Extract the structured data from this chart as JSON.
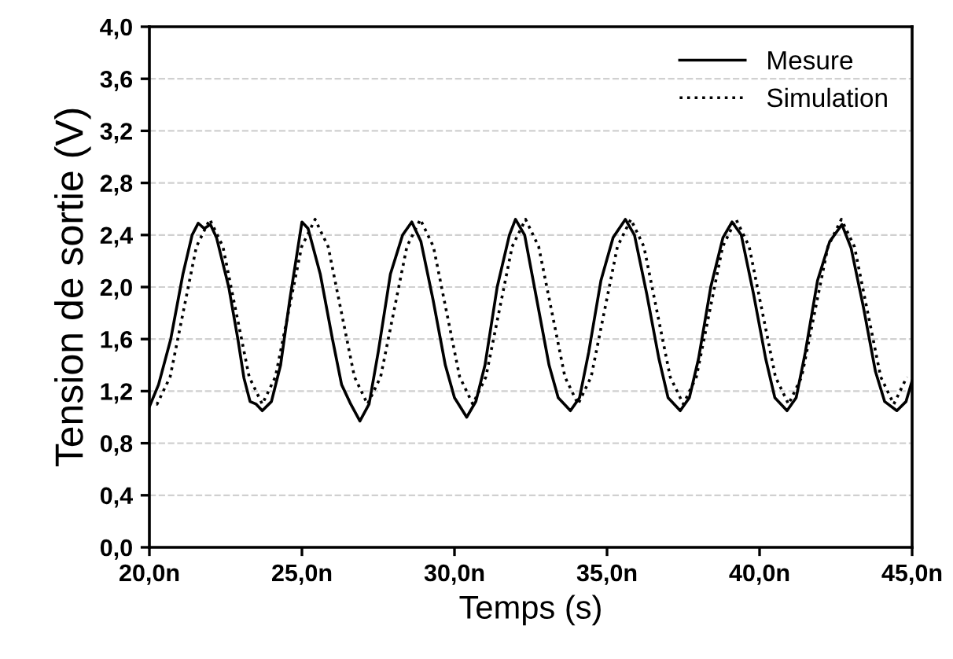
{
  "chart_data": {
    "type": "line",
    "xlabel": "Temps (s)",
    "ylabel": "Tension de sortie (V)",
    "xlim": [
      20,
      45
    ],
    "ylim": [
      0,
      4.0
    ],
    "xticks": [
      {
        "value": 20,
        "label": "20,0n"
      },
      {
        "value": 25,
        "label": "25,0n"
      },
      {
        "value": 30,
        "label": "30,0n"
      },
      {
        "value": 35,
        "label": "35,0n"
      },
      {
        "value": 40,
        "label": "40,0n"
      },
      {
        "value": 45,
        "label": "45,0n"
      }
    ],
    "yticks": [
      {
        "value": 0,
        "label": "0,0"
      },
      {
        "value": 0.4,
        "label": "0,4"
      },
      {
        "value": 0.8,
        "label": "0,8"
      },
      {
        "value": 1.2,
        "label": "1,2"
      },
      {
        "value": 1.6,
        "label": "1,6"
      },
      {
        "value": 2.0,
        "label": "2,0"
      },
      {
        "value": 2.4,
        "label": "2,4"
      },
      {
        "value": 2.8,
        "label": "2,8"
      },
      {
        "value": 3.2,
        "label": "3,2"
      },
      {
        "value": 3.6,
        "label": "3,6"
      },
      {
        "value": 4.0,
        "label": "4,0"
      }
    ],
    "grid": "y",
    "legend": "top right",
    "marker": "none",
    "series": [
      {
        "name": "Mesure",
        "color": "#000000",
        "line_style": "solid",
        "x": [
          20.0,
          20.3,
          20.7,
          21.1,
          21.4,
          21.6,
          21.8,
          22.0,
          22.2,
          22.6,
          22.9,
          23.1,
          23.3,
          23.5,
          23.7,
          24.0,
          24.3,
          24.6,
          24.9,
          25.0,
          25.2,
          25.6,
          26.0,
          26.3,
          26.6,
          26.9,
          27.2,
          27.5,
          27.9,
          28.3,
          28.6,
          28.9,
          29.3,
          29.7,
          30.0,
          30.4,
          30.7,
          31.0,
          31.4,
          31.8,
          32.0,
          32.3,
          32.7,
          33.1,
          33.4,
          33.8,
          34.1,
          34.4,
          34.8,
          35.2,
          35.6,
          35.9,
          36.3,
          36.7,
          37.0,
          37.4,
          37.7,
          38.0,
          38.4,
          38.8,
          39.1,
          39.4,
          39.8,
          40.2,
          40.5,
          40.9,
          41.2,
          41.5,
          41.9,
          42.3,
          42.7,
          43.0,
          43.4,
          43.8,
          44.1,
          44.5,
          44.8,
          45.0
        ],
        "values": [
          1.08,
          1.25,
          1.6,
          2.1,
          2.4,
          2.49,
          2.45,
          2.48,
          2.38,
          2.0,
          1.6,
          1.3,
          1.12,
          1.1,
          1.05,
          1.12,
          1.4,
          1.9,
          2.35,
          2.5,
          2.45,
          2.1,
          1.6,
          1.25,
          1.1,
          0.97,
          1.1,
          1.5,
          2.1,
          2.4,
          2.5,
          2.35,
          1.9,
          1.4,
          1.15,
          1.0,
          1.12,
          1.4,
          2.0,
          2.4,
          2.52,
          2.4,
          1.9,
          1.4,
          1.15,
          1.05,
          1.15,
          1.5,
          2.05,
          2.38,
          2.52,
          2.4,
          1.95,
          1.45,
          1.15,
          1.05,
          1.15,
          1.45,
          2.0,
          2.38,
          2.5,
          2.4,
          1.95,
          1.45,
          1.15,
          1.05,
          1.15,
          1.5,
          2.05,
          2.35,
          2.48,
          2.3,
          1.85,
          1.35,
          1.12,
          1.05,
          1.12,
          1.28
        ]
      },
      {
        "name": "Simulation",
        "color": "#000000",
        "line_style": "dotted",
        "x": [
          20.0,
          20.25,
          20.68,
          21.11,
          21.54,
          21.98,
          22.41,
          22.84,
          23.27,
          23.7,
          24.13,
          24.56,
          24.99,
          25.43,
          25.86,
          26.29,
          26.72,
          27.15,
          27.58,
          28.01,
          28.44,
          28.88,
          29.31,
          29.74,
          30.17,
          30.6,
          31.03,
          31.46,
          31.89,
          32.33,
          32.76,
          33.19,
          33.62,
          34.05,
          34.48,
          34.91,
          35.34,
          35.78,
          36.21,
          36.64,
          37.07,
          37.5,
          37.93,
          38.36,
          38.79,
          39.23,
          39.66,
          40.09,
          40.52,
          40.95,
          41.38,
          41.81,
          42.24,
          42.68,
          43.11,
          43.54,
          43.97,
          44.4,
          44.83
        ],
        "values": [
          1.12,
          1.1,
          1.31,
          1.81,
          2.31,
          2.52,
          2.31,
          1.81,
          1.31,
          1.1,
          1.31,
          1.81,
          2.31,
          2.52,
          2.31,
          1.81,
          1.31,
          1.1,
          1.31,
          1.81,
          2.31,
          2.52,
          2.31,
          1.81,
          1.31,
          1.1,
          1.31,
          1.81,
          2.31,
          2.52,
          2.31,
          1.81,
          1.31,
          1.1,
          1.31,
          1.81,
          2.31,
          2.52,
          2.31,
          1.81,
          1.31,
          1.1,
          1.31,
          1.81,
          2.31,
          2.52,
          2.31,
          1.81,
          1.31,
          1.1,
          1.31,
          1.81,
          2.31,
          2.52,
          2.31,
          1.81,
          1.31,
          1.1,
          1.31
        ]
      }
    ]
  }
}
